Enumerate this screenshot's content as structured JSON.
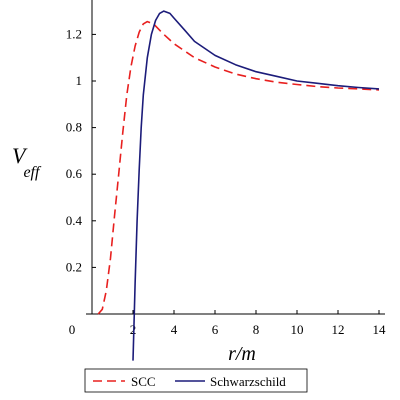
{
  "chart_data": {
    "type": "line",
    "xlabel": "r/m",
    "ylabel": {
      "main": "V",
      "sub": "eff"
    },
    "xlim": [
      0,
      14
    ],
    "ylim": [
      0,
      1.35
    ],
    "x_ticks": [
      0,
      2,
      4,
      6,
      8,
      10,
      12,
      14
    ],
    "x_tick_labels": [
      "0",
      "2",
      "4",
      "6",
      "8",
      "10",
      "12",
      "14"
    ],
    "y_ticks": [
      0.2,
      0.4,
      0.6,
      0.8,
      1,
      1.2
    ],
    "y_tick_labels": [
      "0.2",
      "0.4",
      "0.6",
      "0.8",
      "1",
      "1.2"
    ],
    "grid": false,
    "legend_position": "bottom",
    "series": [
      {
        "name": "SCC",
        "color": "#e8201f",
        "dash": "dashed",
        "points": [
          [
            0.3,
            0.0
          ],
          [
            0.5,
            0.02
          ],
          [
            0.7,
            0.1
          ],
          [
            0.9,
            0.24
          ],
          [
            1.1,
            0.42
          ],
          [
            1.3,
            0.6
          ],
          [
            1.5,
            0.78
          ],
          [
            1.7,
            0.94
          ],
          [
            1.9,
            1.06
          ],
          [
            2.1,
            1.15
          ],
          [
            2.3,
            1.21
          ],
          [
            2.5,
            1.245
          ],
          [
            2.7,
            1.255
          ],
          [
            3.0,
            1.245
          ],
          [
            3.5,
            1.2
          ],
          [
            4.0,
            1.16
          ],
          [
            5.0,
            1.1
          ],
          [
            6.0,
            1.06
          ],
          [
            7.0,
            1.03
          ],
          [
            8.0,
            1.01
          ],
          [
            9.0,
            0.995
          ],
          [
            10.0,
            0.985
          ],
          [
            11.0,
            0.976
          ],
          [
            12.0,
            0.97
          ],
          [
            13.0,
            0.966
          ],
          [
            14.0,
            0.962
          ]
        ]
      },
      {
        "name": "Schwarzschild",
        "color": "#1c1c7a",
        "dash": "solid",
        "points": [
          [
            2.0,
            -0.2
          ],
          [
            2.1,
            0.13
          ],
          [
            2.2,
            0.4
          ],
          [
            2.3,
            0.62
          ],
          [
            2.4,
            0.8
          ],
          [
            2.5,
            0.94
          ],
          [
            2.7,
            1.1
          ],
          [
            2.9,
            1.2
          ],
          [
            3.1,
            1.26
          ],
          [
            3.3,
            1.29
          ],
          [
            3.5,
            1.3
          ],
          [
            3.8,
            1.29
          ],
          [
            4.0,
            1.27
          ],
          [
            4.5,
            1.22
          ],
          [
            5.0,
            1.17
          ],
          [
            6.0,
            1.11
          ],
          [
            7.0,
            1.07
          ],
          [
            8.0,
            1.04
          ],
          [
            9.0,
            1.02
          ],
          [
            10.0,
            1.0
          ],
          [
            11.0,
            0.99
          ],
          [
            12.0,
            0.98
          ],
          [
            13.0,
            0.972
          ],
          [
            14.0,
            0.966
          ]
        ]
      }
    ]
  }
}
